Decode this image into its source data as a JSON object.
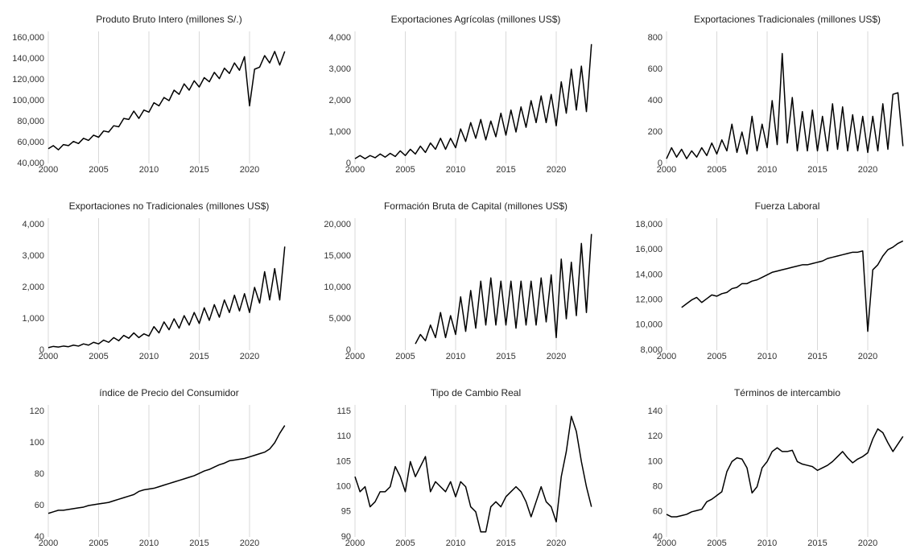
{
  "chart_data": [
    {
      "type": "line",
      "title": "Produto Bruto Intero (millones S/.)",
      "color": "#000000",
      "x": [
        2000,
        2000.5,
        2001,
        2001.5,
        2002,
        2002.5,
        2003,
        2003.5,
        2004,
        2004.5,
        2005,
        2005.5,
        2006,
        2006.5,
        2007,
        2007.5,
        2008,
        2008.5,
        2009,
        2009.5,
        2010,
        2010.5,
        2011,
        2011.5,
        2012,
        2012.5,
        2013,
        2013.5,
        2014,
        2014.5,
        2015,
        2015.5,
        2016,
        2016.5,
        2017,
        2017.5,
        2018,
        2018.5,
        2019,
        2019.5,
        2020,
        2020.5,
        2021,
        2021.5,
        2022,
        2022.5,
        2023,
        2023.5
      ],
      "values": [
        54000,
        57000,
        53000,
        58000,
        57000,
        61000,
        59000,
        64000,
        62000,
        67000,
        65000,
        71000,
        70000,
        76000,
        75000,
        83000,
        82000,
        90000,
        83000,
        91000,
        89000,
        98000,
        95000,
        103000,
        100000,
        110000,
        106000,
        116000,
        110000,
        119000,
        113000,
        122000,
        118000,
        127000,
        121000,
        131000,
        126000,
        136000,
        129000,
        142000,
        95000,
        130000,
        132000,
        143000,
        136000,
        147000,
        134000,
        147000
      ],
      "xlim": [
        2000,
        2024
      ],
      "xticks": [
        2000,
        2005,
        2010,
        2015,
        2020
      ],
      "ylim": [
        40000,
        160000
      ],
      "yticks": [
        {
          "value": 40000,
          "label": "40,000"
        },
        {
          "value": 60000,
          "label": "60,000"
        },
        {
          "value": 80000,
          "label": "80,000"
        },
        {
          "value": 100000,
          "label": "100,000"
        },
        {
          "value": 120000,
          "label": "120,000"
        },
        {
          "value": 140000,
          "label": "140,000"
        },
        {
          "value": 160000,
          "label": "160,000"
        }
      ],
      "grid": true
    },
    {
      "type": "line",
      "title": "Exportaciones Agrícolas (millones US$)",
      "color": "#000000",
      "x": [
        2000,
        2000.5,
        2001,
        2001.5,
        2002,
        2002.5,
        2003,
        2003.5,
        2004,
        2004.5,
        2005,
        2005.5,
        2006,
        2006.5,
        2007,
        2007.5,
        2008,
        2008.5,
        2009,
        2009.5,
        2010,
        2010.5,
        2011,
        2011.5,
        2012,
        2012.5,
        2013,
        2013.5,
        2014,
        2014.5,
        2015,
        2015.5,
        2016,
        2016.5,
        2017,
        2017.5,
        2018,
        2018.5,
        2019,
        2019.5,
        2020,
        2020.5,
        2021,
        2021.5,
        2022,
        2022.5,
        2023,
        2023.5
      ],
      "values": [
        150,
        250,
        150,
        250,
        180,
        300,
        200,
        320,
        220,
        400,
        250,
        450,
        300,
        550,
        350,
        650,
        450,
        800,
        450,
        800,
        500,
        1100,
        700,
        1300,
        800,
        1400,
        750,
        1350,
        850,
        1600,
        900,
        1700,
        1000,
        1800,
        1150,
        2000,
        1300,
        2150,
        1300,
        2200,
        1200,
        2600,
        1600,
        3000,
        1700,
        3100,
        1650,
        3800
      ],
      "xlim": [
        2000,
        2024
      ],
      "xticks": [
        2000,
        2005,
        2010,
        2015,
        2020
      ],
      "ylim": [
        0,
        4000
      ],
      "yticks": [
        0,
        {
          "value": 1000,
          "label": "1,000"
        },
        {
          "value": 2000,
          "label": "2,000"
        },
        {
          "value": 3000,
          "label": "3,000"
        },
        {
          "value": 4000,
          "label": "4,000"
        }
      ],
      "grid": true
    },
    {
      "type": "line",
      "title": "Exportaciones Tradicionales (millones US$)",
      "color": "#000000",
      "x": [
        2000,
        2000.5,
        2001,
        2001.5,
        2002,
        2002.5,
        2003,
        2003.5,
        2004,
        2004.5,
        2005,
        2005.5,
        2006,
        2006.5,
        2007,
        2007.5,
        2008,
        2008.5,
        2009,
        2009.5,
        2010,
        2010.5,
        2011,
        2011.5,
        2012,
        2012.5,
        2013,
        2013.5,
        2014,
        2014.5,
        2015,
        2015.5,
        2016,
        2016.5,
        2017,
        2017.5,
        2018,
        2018.5,
        2019,
        2019.5,
        2020,
        2020.5,
        2021,
        2021.5,
        2022,
        2022.5,
        2023,
        2023.5
      ],
      "values": [
        30,
        100,
        40,
        90,
        30,
        80,
        40,
        100,
        50,
        130,
        60,
        150,
        80,
        250,
        70,
        200,
        60,
        300,
        80,
        250,
        100,
        400,
        120,
        700,
        130,
        420,
        80,
        330,
        80,
        340,
        80,
        300,
        80,
        380,
        90,
        360,
        80,
        310,
        80,
        300,
        70,
        300,
        80,
        380,
        90,
        440,
        450,
        110
      ],
      "xlim": [
        2000,
        2024
      ],
      "xticks": [
        2000,
        2005,
        2010,
        2015,
        2020
      ],
      "ylim": [
        0,
        800
      ],
      "yticks": [
        0,
        200,
        400,
        600,
        800
      ],
      "grid": true
    },
    {
      "type": "line",
      "title": "Exportaciones no Tradicionales (millones US$)",
      "color": "#000000",
      "x": [
        2000,
        2000.5,
        2001,
        2001.5,
        2002,
        2002.5,
        2003,
        2003.5,
        2004,
        2004.5,
        2005,
        2005.5,
        2006,
        2006.5,
        2007,
        2007.5,
        2008,
        2008.5,
        2009,
        2009.5,
        2010,
        2010.5,
        2011,
        2011.5,
        2012,
        2012.5,
        2013,
        2013.5,
        2014,
        2014.5,
        2015,
        2015.5,
        2016,
        2016.5,
        2017,
        2017.5,
        2018,
        2018.5,
        2019,
        2019.5,
        2020,
        2020.5,
        2021,
        2021.5,
        2022,
        2022.5,
        2023,
        2023.5
      ],
      "values": [
        80,
        120,
        100,
        130,
        110,
        160,
        130,
        200,
        160,
        250,
        200,
        320,
        250,
        400,
        300,
        470,
        380,
        550,
        400,
        520,
        450,
        750,
        550,
        900,
        650,
        1000,
        700,
        1100,
        800,
        1200,
        850,
        1350,
        950,
        1450,
        1050,
        1600,
        1200,
        1750,
        1250,
        1800,
        1200,
        2000,
        1500,
        2500,
        1600,
        2600,
        1600,
        3300
      ],
      "xlim": [
        2000,
        2024
      ],
      "xticks": [
        2000,
        2005,
        2010,
        2015,
        2020
      ],
      "ylim": [
        0,
        4000
      ],
      "yticks": [
        0,
        {
          "value": 1000,
          "label": "1,000"
        },
        {
          "value": 2000,
          "label": "2,000"
        },
        {
          "value": 3000,
          "label": "3,000"
        },
        {
          "value": 4000,
          "label": "4,000"
        }
      ],
      "grid": true
    },
    {
      "type": "line",
      "title": "Formación Bruta de Capital  (millones US$)",
      "color": "#000000",
      "x": [
        2000,
        2000.5,
        2001,
        2001.5,
        2002,
        2002.5,
        2003,
        2003.5,
        2004,
        2004.5,
        2005,
        2005.5,
        2006,
        2006.5,
        2007,
        2007.5,
        2008,
        2008.5,
        2009,
        2009.5,
        2010,
        2010.5,
        2011,
        2011.5,
        2012,
        2012.5,
        2013,
        2013.5,
        2014,
        2014.5,
        2015,
        2015.5,
        2016,
        2016.5,
        2017,
        2017.5,
        2018,
        2018.5,
        2019,
        2019.5,
        2020,
        2020.5,
        2021,
        2021.5,
        2022,
        2022.5,
        2023,
        2023.5
      ],
      "values": [
        null,
        null,
        null,
        null,
        null,
        null,
        null,
        null,
        null,
        null,
        null,
        null,
        1000,
        2500,
        1500,
        4000,
        2000,
        6000,
        2000,
        5500,
        2500,
        8500,
        3000,
        9500,
        3500,
        11000,
        4000,
        11500,
        4000,
        11000,
        4000,
        11000,
        3500,
        11000,
        4000,
        11000,
        4000,
        11500,
        4500,
        12000,
        2000,
        14500,
        5000,
        14000,
        5500,
        17000,
        6000,
        18500
      ],
      "xlim": [
        2000,
        2024
      ],
      "xticks": [
        2000,
        2005,
        2010,
        2015,
        2020
      ],
      "ylim": [
        0,
        20000
      ],
      "yticks": [
        0,
        {
          "value": 5000,
          "label": "5,000"
        },
        {
          "value": 10000,
          "label": "10,000"
        },
        {
          "value": 15000,
          "label": "15,000"
        },
        {
          "value": 20000,
          "label": "20,000"
        }
      ],
      "grid": true
    },
    {
      "type": "line",
      "title": "Fuerza Laboral",
      "color": "#000000",
      "x": [
        2000,
        2000.5,
        2001,
        2001.5,
        2002,
        2002.5,
        2003,
        2003.5,
        2004,
        2004.5,
        2005,
        2005.5,
        2006,
        2006.5,
        2007,
        2007.5,
        2008,
        2008.5,
        2009,
        2009.5,
        2010,
        2010.5,
        2011,
        2011.5,
        2012,
        2012.5,
        2013,
        2013.5,
        2014,
        2014.5,
        2015,
        2015.5,
        2016,
        2016.5,
        2017,
        2017.5,
        2018,
        2018.5,
        2019,
        2019.5,
        2020,
        2020.5,
        2021,
        2021.5,
        2022,
        2022.5,
        2023,
        2023.5
      ],
      "values": [
        null,
        null,
        null,
        11400,
        11700,
        12000,
        12200,
        11800,
        12100,
        12400,
        12300,
        12500,
        12600,
        12900,
        13000,
        13300,
        13300,
        13500,
        13600,
        13800,
        14000,
        14200,
        14300,
        14400,
        14500,
        14600,
        14700,
        14800,
        14800,
        14900,
        15000,
        15100,
        15300,
        15400,
        15500,
        15600,
        15700,
        15800,
        15800,
        15900,
        9500,
        14400,
        14800,
        15500,
        16000,
        16200,
        16500,
        16700
      ],
      "xlim": [
        2000,
        2024
      ],
      "xticks": [
        2000,
        2005,
        2010,
        2015,
        2020
      ],
      "ylim": [
        8000,
        18000
      ],
      "yticks": [
        {
          "value": 8000,
          "label": "8,000"
        },
        {
          "value": 10000,
          "label": "10,000"
        },
        {
          "value": 12000,
          "label": "12,000"
        },
        {
          "value": 14000,
          "label": "14,000"
        },
        {
          "value": 16000,
          "label": "16,000"
        },
        {
          "value": 18000,
          "label": "18,000"
        }
      ],
      "grid": true
    },
    {
      "type": "line",
      "title": "índice de Precio del Consumidor",
      "color": "#000000",
      "x": [
        2000,
        2000.5,
        2001,
        2001.5,
        2002,
        2002.5,
        2003,
        2003.5,
        2004,
        2004.5,
        2005,
        2005.5,
        2006,
        2006.5,
        2007,
        2007.5,
        2008,
        2008.5,
        2009,
        2009.5,
        2010,
        2010.5,
        2011,
        2011.5,
        2012,
        2012.5,
        2013,
        2013.5,
        2014,
        2014.5,
        2015,
        2015.5,
        2016,
        2016.5,
        2017,
        2017.5,
        2018,
        2018.5,
        2019,
        2019.5,
        2020,
        2020.5,
        2021,
        2021.5,
        2022,
        2022.5,
        2023,
        2023.5
      ],
      "values": [
        55,
        56,
        57,
        57,
        57.5,
        58,
        58.5,
        59,
        60,
        60.5,
        61,
        61.5,
        62,
        63,
        64,
        65,
        66,
        67,
        69,
        70,
        70.5,
        71,
        72,
        73,
        74,
        75,
        76,
        77,
        78,
        79,
        80.5,
        82,
        83,
        84.5,
        86,
        87,
        88.5,
        89,
        89.5,
        90,
        91,
        92,
        93,
        94,
        96,
        100,
        106,
        111
      ],
      "xlim": [
        2000,
        2024
      ],
      "xticks": [
        2000,
        2005,
        2010,
        2015,
        2020
      ],
      "ylim": [
        40,
        120
      ],
      "yticks": [
        40,
        60,
        80,
        100,
        120
      ],
      "grid": true
    },
    {
      "type": "line",
      "title": "Tipo de Cambio Real",
      "color": "#000000",
      "x": [
        2000,
        2000.5,
        2001,
        2001.5,
        2002,
        2002.5,
        2003,
        2003.5,
        2004,
        2004.5,
        2005,
        2005.5,
        2006,
        2006.5,
        2007,
        2007.5,
        2008,
        2008.5,
        2009,
        2009.5,
        2010,
        2010.5,
        2011,
        2011.5,
        2012,
        2012.5,
        2013,
        2013.5,
        2014,
        2014.5,
        2015,
        2015.5,
        2016,
        2016.5,
        2017,
        2017.5,
        2018,
        2018.5,
        2019,
        2019.5,
        2020,
        2020.5,
        2021,
        2021.5,
        2022,
        2022.5,
        2023,
        2023.5
      ],
      "values": [
        102,
        99,
        100,
        96,
        97,
        99,
        99,
        100,
        104,
        102,
        99,
        105,
        102,
        104,
        106,
        99,
        101,
        100,
        99,
        101,
        98,
        101,
        100,
        96,
        95,
        91,
        91,
        96,
        97,
        96,
        98,
        99,
        100,
        99,
        97,
        94,
        97,
        100,
        97,
        96,
        93,
        102,
        107,
        114,
        111,
        105,
        100,
        96
      ],
      "xlim": [
        2000,
        2024
      ],
      "xticks": [
        2000,
        2005,
        2010,
        2015,
        2020
      ],
      "ylim": [
        90,
        115
      ],
      "yticks": [
        90,
        95,
        100,
        105,
        110,
        115
      ],
      "grid": true
    },
    {
      "type": "line",
      "title": "Términos de intercambio",
      "color": "#000000",
      "x": [
        2000,
        2000.5,
        2001,
        2001.5,
        2002,
        2002.5,
        2003,
        2003.5,
        2004,
        2004.5,
        2005,
        2005.5,
        2006,
        2006.5,
        2007,
        2007.5,
        2008,
        2008.5,
        2009,
        2009.5,
        2010,
        2010.5,
        2011,
        2011.5,
        2012,
        2012.5,
        2013,
        2013.5,
        2014,
        2014.5,
        2015,
        2015.5,
        2016,
        2016.5,
        2017,
        2017.5,
        2018,
        2018.5,
        2019,
        2019.5,
        2020,
        2020.5,
        2021,
        2021.5,
        2022,
        2022.5,
        2023,
        2023.5
      ],
      "values": [
        58,
        56,
        56,
        57,
        58,
        60,
        61,
        62,
        68,
        70,
        73,
        76,
        92,
        100,
        103,
        102,
        95,
        75,
        80,
        95,
        100,
        108,
        111,
        108,
        108,
        109,
        100,
        98,
        97,
        96,
        93,
        95,
        97,
        100,
        104,
        108,
        103,
        99,
        102,
        104,
        107,
        118,
        126,
        123,
        115,
        108,
        114,
        120
      ],
      "xlim": [
        2000,
        2024
      ],
      "xticks": [
        2000,
        2005,
        2010,
        2015,
        2020
      ],
      "ylim": [
        40,
        140
      ],
      "yticks": [
        40,
        60,
        80,
        100,
        120,
        140
      ],
      "grid": true
    }
  ]
}
